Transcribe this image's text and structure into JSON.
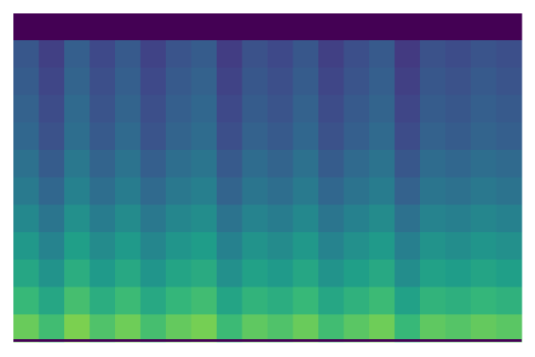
{
  "chart_data": {
    "type": "heatmap",
    "colormap": "viridis",
    "zlim": [
      0,
      1
    ],
    "values": [
      [
        0,
        0,
        0,
        0,
        0,
        0,
        0,
        0,
        0,
        0,
        0,
        0,
        0,
        0,
        0,
        0,
        0,
        0,
        0,
        0
      ],
      [
        0.27,
        0.19,
        0.3,
        0.22,
        0.28,
        0.2,
        0.26,
        0.29,
        0.18,
        0.25,
        0.22,
        0.27,
        0.19,
        0.24,
        0.28,
        0.17,
        0.25,
        0.23,
        0.26,
        0.24
      ],
      [
        0.29,
        0.21,
        0.32,
        0.24,
        0.3,
        0.22,
        0.28,
        0.31,
        0.2,
        0.27,
        0.24,
        0.29,
        0.21,
        0.26,
        0.3,
        0.19,
        0.27,
        0.25,
        0.28,
        0.26
      ],
      [
        0.31,
        0.23,
        0.34,
        0.26,
        0.32,
        0.24,
        0.3,
        0.33,
        0.22,
        0.29,
        0.26,
        0.31,
        0.23,
        0.28,
        0.32,
        0.21,
        0.29,
        0.27,
        0.3,
        0.28
      ],
      [
        0.33,
        0.25,
        0.36,
        0.28,
        0.34,
        0.26,
        0.32,
        0.35,
        0.24,
        0.31,
        0.28,
        0.33,
        0.25,
        0.3,
        0.34,
        0.23,
        0.31,
        0.29,
        0.32,
        0.3
      ],
      [
        0.37,
        0.29,
        0.4,
        0.32,
        0.38,
        0.3,
        0.36,
        0.39,
        0.28,
        0.35,
        0.32,
        0.37,
        0.29,
        0.34,
        0.38,
        0.27,
        0.35,
        0.33,
        0.36,
        0.34
      ],
      [
        0.41,
        0.33,
        0.44,
        0.36,
        0.42,
        0.34,
        0.4,
        0.43,
        0.32,
        0.39,
        0.36,
        0.41,
        0.33,
        0.38,
        0.42,
        0.31,
        0.39,
        0.37,
        0.4,
        0.38
      ],
      [
        0.47,
        0.39,
        0.5,
        0.42,
        0.48,
        0.4,
        0.46,
        0.49,
        0.38,
        0.45,
        0.42,
        0.47,
        0.39,
        0.44,
        0.48,
        0.37,
        0.45,
        0.43,
        0.46,
        0.44
      ],
      [
        0.53,
        0.45,
        0.56,
        0.48,
        0.54,
        0.46,
        0.52,
        0.55,
        0.44,
        0.51,
        0.48,
        0.53,
        0.45,
        0.5,
        0.54,
        0.43,
        0.51,
        0.49,
        0.52,
        0.5
      ],
      [
        0.59,
        0.51,
        0.62,
        0.54,
        0.6,
        0.52,
        0.58,
        0.61,
        0.5,
        0.57,
        0.54,
        0.59,
        0.51,
        0.56,
        0.6,
        0.49,
        0.57,
        0.55,
        0.58,
        0.56
      ],
      [
        0.67,
        0.59,
        0.7,
        0.62,
        0.68,
        0.6,
        0.66,
        0.69,
        0.58,
        0.65,
        0.62,
        0.67,
        0.59,
        0.64,
        0.68,
        0.57,
        0.65,
        0.63,
        0.66,
        0.64
      ],
      [
        0.77,
        0.69,
        0.8,
        0.72,
        0.78,
        0.7,
        0.76,
        0.79,
        0.68,
        0.75,
        0.72,
        0.77,
        0.69,
        0.74,
        0.78,
        0.67,
        0.75,
        0.73,
        0.76,
        0.74
      ]
    ]
  }
}
